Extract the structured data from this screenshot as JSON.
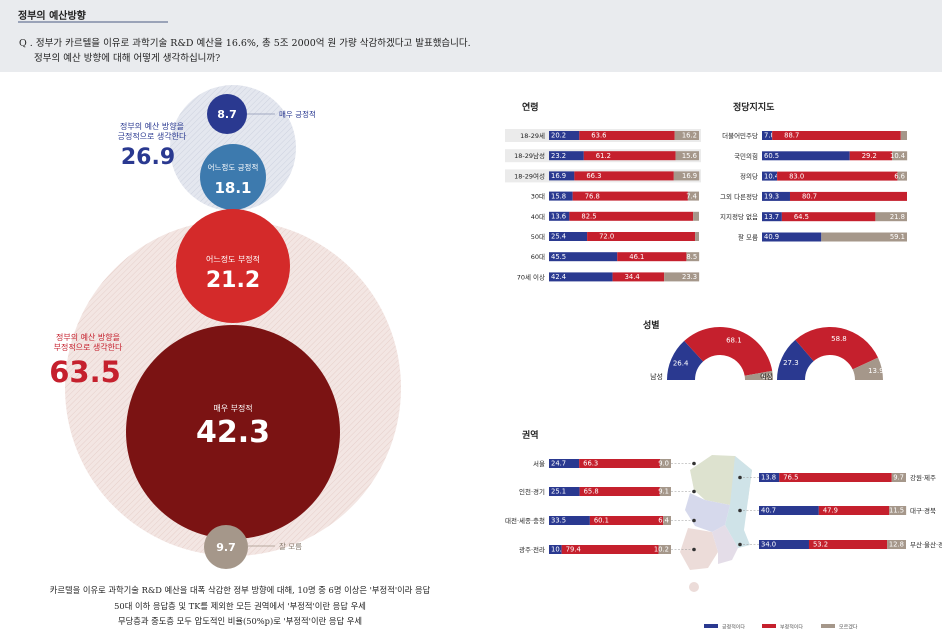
{
  "header": {
    "section_title": "정부의 예산방향",
    "question_line1": "Q . 정부가 카르텔을 이유로 과학기술 R&D 예산을 16.6%, 총 5조 2000억 원 가량 삭감하겠다고 발표했습니다.",
    "question_line2": "정부의 예산 방향에 대해 어떻게 생각하십니까?"
  },
  "colors": {
    "blue": "#2a3990",
    "mid_blue": "#3d7aae",
    "red": "#c5202d",
    "dark_red": "#7b1313",
    "gray": "#a5978a",
    "light_blue_bg": "#e2e5ee",
    "light_red_bg": "#f1e4e1"
  },
  "legend": [
    "긍정적이다",
    "부정적이다",
    "모르겠다"
  ],
  "bubble_chart": {
    "positive_group": {
      "label_line1": "정부의 예산 방향을",
      "label_line2": "긍정적으로 생각한다",
      "value": "26.9"
    },
    "negative_group": {
      "label_line1": "정부의 예산 방향을",
      "label_line2": "부정적으로 생각한다",
      "value": "63.5"
    },
    "very_positive": {
      "label": "매우 긍정적",
      "value": "8.7"
    },
    "somewhat_positive": {
      "label": "어느정도 긍정적",
      "value": "18.1"
    },
    "somewhat_negative": {
      "label": "어느정도 부정적",
      "value": "21.2"
    },
    "very_negative": {
      "label": "매우 부정적",
      "value": "42.3"
    },
    "dont_know": {
      "label": "잘 모름",
      "value": "9.7"
    }
  },
  "footnotes": [
    "카르텔을 이유로 과학기술 R&D 예산을 대폭 삭감한 정부 방향에 대해, 10명 중 6명 이상은 '부정적'이라 응답",
    "50대 이하 응답층 및 TK를 제외한 모든 권역에서 '부정적'이란 응답 우세",
    "무당층과 중도층 모두 압도적인 비율(50%p)로 '부정적'이란 응답 우세"
  ],
  "chart_data": [
    {
      "type": "bar",
      "stacked": true,
      "orientation": "horizontal",
      "title": "연령",
      "categories": [
        "18-29세",
        "18-29남성",
        "18-29여성",
        "30대",
        "40대",
        "50대",
        "60대",
        "70세 이상"
      ],
      "series": [
        {
          "values": [
            20.2,
            23.2,
            16.9,
            15.8,
            13.6,
            25.4,
            45.5,
            42.4
          ]
        },
        {
          "values": [
            63.6,
            61.2,
            66.3,
            76.8,
            82.5,
            72.0,
            46.1,
            34.4
          ]
        },
        {
          "values": [
            16.2,
            15.6,
            16.9,
            7.4,
            3.9,
            2.6,
            8.5,
            23.3
          ]
        }
      ],
      "labels": [
        [
          "20.2",
          "63.6",
          "16.2"
        ],
        [
          "23.2",
          "61.2",
          "15.6"
        ],
        [
          "16.9",
          "66.3",
          "16.9"
        ],
        [
          "15.8",
          "76.8",
          "7.4"
        ],
        [
          "13.6",
          "82.5",
          ""
        ],
        [
          "25.4",
          "72.0",
          ""
        ],
        [
          "45.5",
          "46.1",
          "8.5"
        ],
        [
          "42.4",
          "34.4",
          "23.3"
        ]
      ]
    },
    {
      "type": "bar",
      "stacked": true,
      "orientation": "horizontal",
      "title": "정당지지도",
      "categories": [
        "더불어민주당",
        "국민의힘",
        "정의당",
        "그외 다른정당",
        "지지정당 없음",
        "잘 모름"
      ],
      "series": [
        {
          "values": [
            7.0,
            60.5,
            10.4,
            19.3,
            13.7,
            40.9
          ]
        },
        {
          "values": [
            88.7,
            29.2,
            83.0,
            80.7,
            64.5,
            0
          ]
        },
        {
          "values": [
            4.3,
            10.4,
            6.6,
            0,
            21.8,
            59.1
          ]
        }
      ],
      "labels": [
        [
          "7.0",
          "88.7",
          ""
        ],
        [
          "60.5",
          "29.2",
          "10.4"
        ],
        [
          "10.4",
          "83.0",
          "6.6"
        ],
        [
          "19.3",
          "80.7",
          ""
        ],
        [
          "13.7",
          "64.5",
          "21.8"
        ],
        [
          "40.9",
          "",
          "59.1"
        ]
      ]
    },
    {
      "type": "pie",
      "title": "성별",
      "groups": [
        {
          "name": "남성",
          "values": [
            26.4,
            68.1,
            5.5
          ],
          "labels": [
            "26.4",
            "68.1",
            "5.5"
          ]
        },
        {
          "name": "여성",
          "values": [
            27.3,
            58.8,
            13.9
          ],
          "labels": [
            "27.3",
            "58.8",
            "13.9"
          ]
        }
      ]
    },
    {
      "type": "bar",
      "stacked": true,
      "orientation": "horizontal",
      "title": "권역",
      "categories": [
        "서울",
        "인천·경기",
        "대전·세종·충청",
        "광주·전라",
        "강원·제주",
        "대구·경북",
        "부산·울산·경남"
      ],
      "series": [
        {
          "values": [
            24.7,
            25.1,
            33.5,
            10.4,
            13.8,
            40.7,
            34.0
          ]
        },
        {
          "values": [
            66.3,
            65.8,
            60.1,
            79.4,
            76.5,
            47.9,
            53.2
          ]
        },
        {
          "values": [
            9.0,
            9.1,
            6.4,
            10.2,
            9.7,
            11.5,
            12.8
          ]
        }
      ],
      "labels": [
        [
          "24.7",
          "66.3",
          "9.0"
        ],
        [
          "25.1",
          "65.8",
          "9.1"
        ],
        [
          "33.5",
          "60.1",
          "6.4"
        ],
        [
          "10.4",
          "79.4",
          "10.2"
        ],
        [
          "13.8",
          "76.5",
          "9.7"
        ],
        [
          "40.7",
          "47.9",
          "11.5"
        ],
        [
          "34.0",
          "53.2",
          "12.8"
        ]
      ]
    }
  ]
}
